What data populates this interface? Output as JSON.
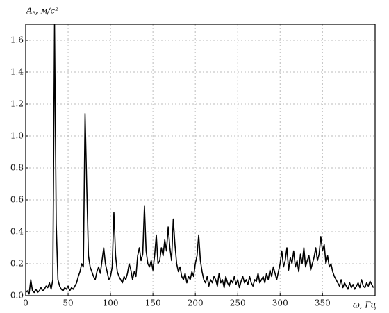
{
  "chart_data": {
    "type": "line",
    "y_label": "Aₓ, м/с²",
    "x_label": "ω, Гц",
    "xlim": [
      0,
      412
    ],
    "ylim": [
      0,
      1.7
    ],
    "xticks": [
      0,
      50,
      100,
      150,
      200,
      250,
      300,
      350
    ],
    "yticks": [
      {
        "value": 0,
        "label": "0.0"
      },
      0.2,
      0.4,
      0.6,
      0.8,
      {
        "value": 1,
        "label": "1.0"
      },
      1.2,
      1.4,
      1.6
    ],
    "grid": true,
    "series": [
      {
        "color": "#000000",
        "x": [
          0,
          2,
          4,
          6,
          8,
          10,
          12,
          14,
          16,
          18,
          20,
          22,
          24,
          26,
          28,
          30,
          32,
          34,
          36,
          38,
          40,
          42,
          44,
          46,
          48,
          50,
          52,
          54,
          56,
          58,
          60,
          62,
          64,
          66,
          68,
          70,
          72,
          74,
          76,
          78,
          80,
          82,
          84,
          86,
          88,
          90,
          92,
          94,
          96,
          98,
          100,
          102,
          104,
          106,
          108,
          110,
          112,
          114,
          116,
          118,
          120,
          122,
          124,
          126,
          128,
          130,
          132,
          134,
          136,
          138,
          140,
          142,
          144,
          146,
          148,
          150,
          152,
          154,
          156,
          158,
          160,
          162,
          164,
          166,
          168,
          170,
          172,
          174,
          176,
          178,
          180,
          182,
          184,
          186,
          188,
          190,
          192,
          194,
          196,
          198,
          200,
          202,
          204,
          206,
          208,
          210,
          212,
          214,
          216,
          218,
          220,
          222,
          224,
          226,
          228,
          230,
          232,
          234,
          236,
          238,
          240,
          242,
          244,
          246,
          248,
          250,
          252,
          254,
          256,
          258,
          260,
          262,
          264,
          266,
          268,
          270,
          272,
          274,
          276,
          278,
          280,
          282,
          284,
          286,
          288,
          290,
          292,
          294,
          296,
          298,
          300,
          302,
          304,
          306,
          308,
          310,
          312,
          314,
          316,
          318,
          320,
          322,
          324,
          326,
          328,
          330,
          332,
          334,
          336,
          338,
          340,
          342,
          344,
          346,
          348,
          350,
          352,
          354,
          356,
          358,
          360,
          362,
          364,
          366,
          368,
          370,
          372,
          374,
          376,
          378,
          380,
          382,
          384,
          386,
          388,
          390,
          392,
          394,
          396,
          398,
          400,
          402,
          404,
          406,
          408,
          410
        ],
        "values": [
          0.02,
          0.03,
          0.01,
          0.1,
          0.03,
          0.02,
          0.04,
          0.02,
          0.03,
          0.05,
          0.03,
          0.04,
          0.06,
          0.05,
          0.08,
          0.04,
          0.1,
          1.7,
          0.45,
          0.1,
          0.06,
          0.04,
          0.03,
          0.05,
          0.04,
          0.06,
          0.03,
          0.05,
          0.04,
          0.06,
          0.08,
          0.12,
          0.15,
          0.2,
          0.18,
          1.14,
          0.68,
          0.25,
          0.18,
          0.15,
          0.12,
          0.1,
          0.15,
          0.18,
          0.14,
          0.22,
          0.3,
          0.2,
          0.15,
          0.1,
          0.12,
          0.18,
          0.52,
          0.25,
          0.15,
          0.12,
          0.1,
          0.08,
          0.12,
          0.1,
          0.14,
          0.2,
          0.16,
          0.1,
          0.15,
          0.12,
          0.25,
          0.3,
          0.22,
          0.26,
          0.56,
          0.28,
          0.2,
          0.18,
          0.22,
          0.16,
          0.25,
          0.38,
          0.2,
          0.22,
          0.3,
          0.25,
          0.35,
          0.28,
          0.43,
          0.3,
          0.22,
          0.48,
          0.32,
          0.2,
          0.15,
          0.18,
          0.12,
          0.1,
          0.14,
          0.08,
          0.12,
          0.1,
          0.15,
          0.12,
          0.2,
          0.25,
          0.38,
          0.22,
          0.15,
          0.1,
          0.08,
          0.12,
          0.06,
          0.1,
          0.08,
          0.12,
          0.1,
          0.06,
          0.14,
          0.08,
          0.1,
          0.05,
          0.12,
          0.08,
          0.06,
          0.1,
          0.08,
          0.12,
          0.07,
          0.1,
          0.05,
          0.09,
          0.12,
          0.08,
          0.1,
          0.07,
          0.12,
          0.08,
          0.06,
          0.1,
          0.09,
          0.14,
          0.08,
          0.1,
          0.12,
          0.08,
          0.14,
          0.1,
          0.16,
          0.12,
          0.18,
          0.14,
          0.1,
          0.15,
          0.2,
          0.28,
          0.18,
          0.22,
          0.3,
          0.16,
          0.24,
          0.2,
          0.28,
          0.18,
          0.22,
          0.15,
          0.26,
          0.2,
          0.3,
          0.18,
          0.22,
          0.25,
          0.16,
          0.2,
          0.24,
          0.3,
          0.22,
          0.26,
          0.37,
          0.28,
          0.32,
          0.2,
          0.25,
          0.18,
          0.2,
          0.15,
          0.12,
          0.1,
          0.08,
          0.06,
          0.1,
          0.05,
          0.08,
          0.06,
          0.04,
          0.08,
          0.05,
          0.07,
          0.04,
          0.06,
          0.08,
          0.05,
          0.1,
          0.06,
          0.05,
          0.08,
          0.06,
          0.09,
          0.07,
          0.05
        ]
      }
    ]
  }
}
